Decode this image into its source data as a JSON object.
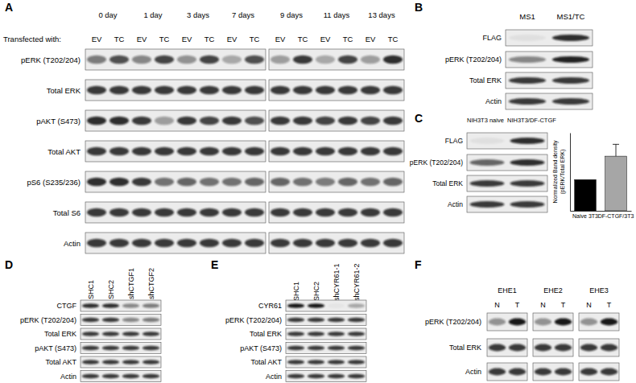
{
  "panels": [
    {
      "label": "A",
      "header": "Transfected with:",
      "blots": [
        [
          {
            "label": "0 day",
            "lanes": [
              "EV",
              "TC"
            ]
          },
          {
            "label": "1 day",
            "lanes": [
              "EV",
              "TC"
            ]
          },
          {
            "label": "3 days",
            "lanes": [
              "EV",
              "TC"
            ]
          },
          {
            "label": "7 days",
            "lanes": [
              "EV",
              "TC"
            ]
          }
        ],
        [
          {
            "label": "9 days",
            "lanes": [
              "EV",
              "TC"
            ]
          },
          {
            "label": "11 days",
            "lanes": [
              "EV",
              "TC"
            ]
          },
          {
            "label": "13 days",
            "lanes": [
              "EV",
              "TC"
            ]
          }
        ]
      ],
      "rows": [
        "pERK (T202/204)",
        "Total ERK",
        "pAKT (S473)",
        "Total AKT",
        "pS6 (S235/236)",
        "Total S6",
        "Actin"
      ]
    },
    {
      "label": "B",
      "lanes": [
        "MS1",
        "MS1/TC"
      ],
      "rows": [
        "FLAG",
        "pERK (T202/204)",
        "Total ERK",
        "Actin"
      ]
    },
    {
      "label": "C",
      "lanes": [
        "NIH3T3 naive",
        "NIH3T3/DF-CTGF"
      ],
      "rows": [
        "FLAG",
        "pERK (T202/204)",
        "Total ERK",
        "Actin"
      ]
    },
    {
      "label": "D",
      "lanes": [
        "SHC1",
        "SHC2",
        "shCTGF1",
        "shCTGF2"
      ],
      "rows": [
        "CTGF",
        "pERK (T202/204)",
        "Total ERK",
        "pAKT (S473)",
        "Total AKT",
        "Actin"
      ]
    },
    {
      "label": "E",
      "lanes": [
        "SHC1",
        "SHC2",
        "shCYR61-1",
        "shCYR61-2"
      ],
      "rows": [
        "CYR61",
        "pERK (T202/204)",
        "Total ERK",
        "pAKT (S473)",
        "Total AKT",
        "Actin"
      ]
    },
    {
      "label": "F",
      "groups": [
        {
          "label": "EHE1",
          "lanes": [
            "N",
            "T"
          ]
        },
        {
          "label": "EHE2",
          "lanes": [
            "N",
            "T"
          ]
        },
        {
          "label": "EHE3",
          "lanes": [
            "N",
            "T"
          ]
        }
      ],
      "rows": [
        "pERK (T202/204)",
        "Total ERK",
        "Actin"
      ]
    }
  ],
  "chart_data": {
    "type": "bar",
    "categories": [
      "Naive 3T3",
      "DF-CTGF/3T3"
    ],
    "values": [
      1,
      1.75
    ],
    "errors": [
      null,
      0.38
    ],
    "colors": [
      "#000000",
      "#a6a6a6"
    ],
    "y_label": [
      "Normalized Band density",
      "(pERK/Total ERK)"
    ],
    "ylim": [
      0,
      2.5
    ],
    "tick_labels": "x"
  }
}
